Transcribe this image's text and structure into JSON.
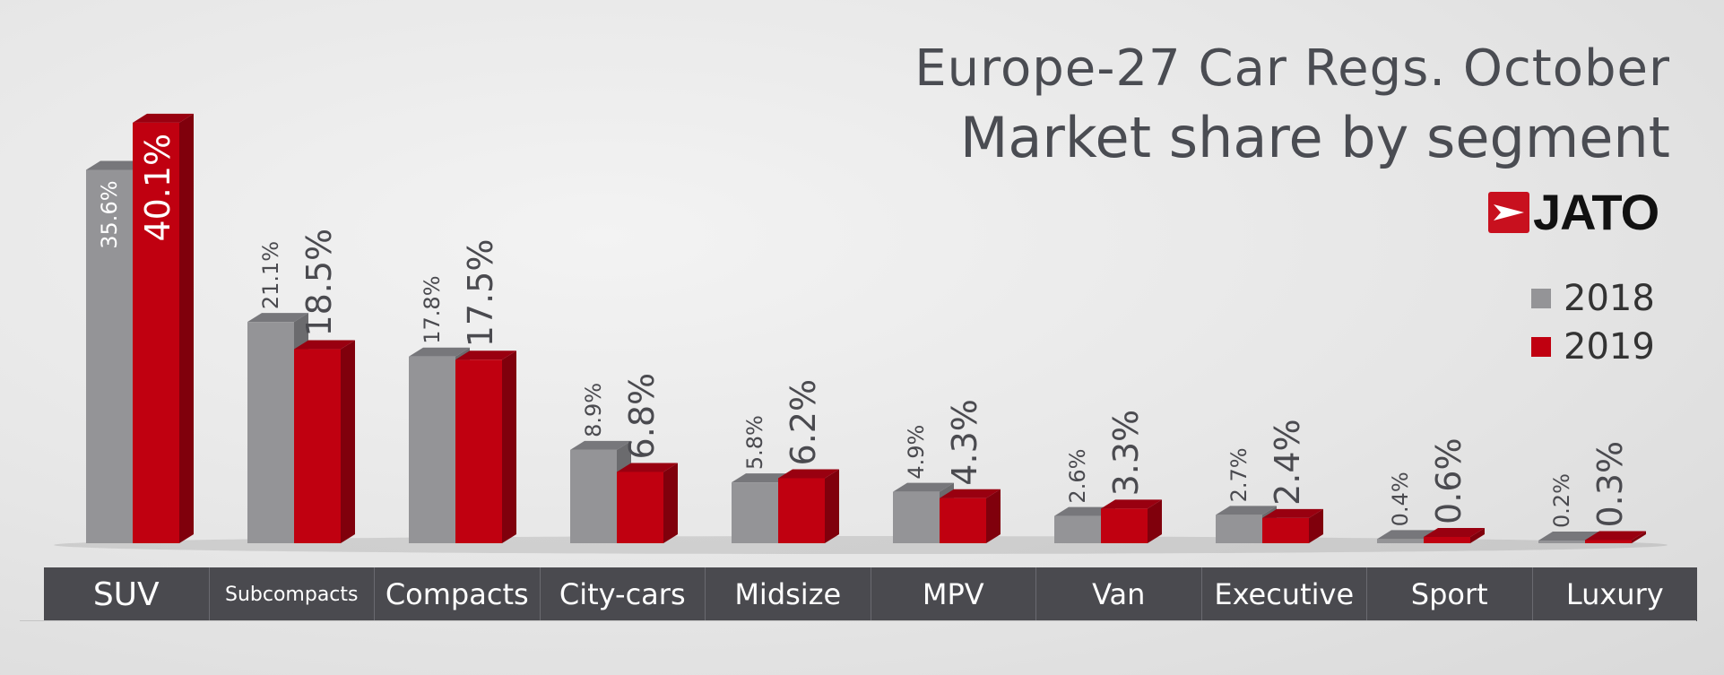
{
  "title": "Europe-27 Car Regs. October",
  "subtitle": "Market share by segment",
  "logo": {
    "text": "JATO"
  },
  "colors": {
    "2018": "#949497",
    "2019": "#c00010"
  },
  "legend": [
    {
      "label": "2018",
      "color": "#949497"
    },
    {
      "label": "2019",
      "color": "#c00010"
    }
  ],
  "chart_data": {
    "type": "bar",
    "title": "Market share by segment",
    "categories": [
      "SUV",
      "Subcompacts",
      "Compacts",
      "City-cars",
      "Midsize",
      "MPV",
      "Van",
      "Executive",
      "Sport",
      "Luxury"
    ],
    "series": [
      {
        "name": "2018",
        "values": [
          35.6,
          21.1,
          17.8,
          8.9,
          5.8,
          4.9,
          2.6,
          2.7,
          0.4,
          0.2
        ],
        "labels": [
          "35.6%",
          "21.1%",
          "17.8%",
          "8.9%",
          "5.8%",
          "4.9%",
          "2.6%",
          "2.7%",
          "0.4%",
          "0.2%"
        ]
      },
      {
        "name": "2019",
        "values": [
          40.1,
          18.5,
          17.5,
          6.8,
          6.2,
          4.3,
          3.3,
          2.4,
          0.6,
          0.3
        ],
        "labels": [
          "40.1%",
          "18.5%",
          "17.5%",
          "6.8%",
          "6.2%",
          "4.3%",
          "3.3%",
          "2.4%",
          "0.6%",
          "0.3%"
        ]
      }
    ],
    "ylim": [
      0,
      45
    ],
    "legend_position": "right",
    "grid": false
  }
}
